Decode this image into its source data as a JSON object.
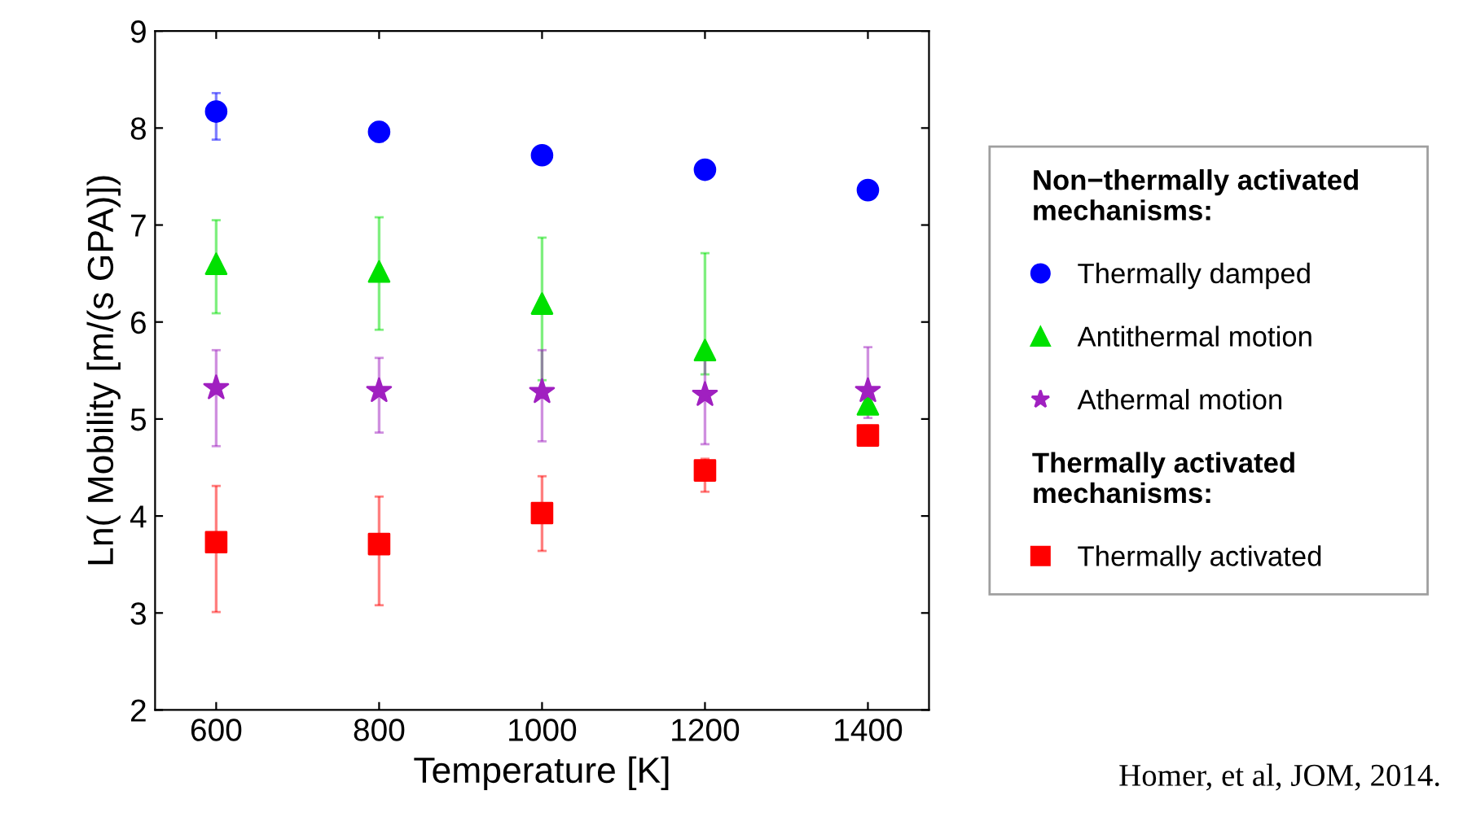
{
  "chart_data": {
    "type": "scatter",
    "xlabel": "Temperature [K]",
    "ylabel": "Ln( Mobility [m/(s GPA)])",
    "x": [
      600,
      800,
      1000,
      1200,
      1400
    ],
    "xlim": [
      525,
      1475
    ],
    "xticks": [
      600,
      800,
      1000,
      1200,
      1400
    ],
    "ylim": [
      2,
      9
    ],
    "yticks": [
      2,
      3,
      4,
      5,
      6,
      7,
      8,
      9
    ],
    "grid": false,
    "legend": "right",
    "series": [
      {
        "name": "Thermally damped",
        "color": "#0000ff",
        "marker": "circle",
        "values": [
          8.17,
          7.96,
          7.72,
          7.57,
          7.36
        ],
        "errors": [
          [
            7.88,
            8.36
          ],
          [
            7.86,
            8.06
          ],
          null,
          null,
          null
        ]
      },
      {
        "name": "Antithermal motion",
        "color": "#00e000",
        "marker": "triangle",
        "values": [
          6.6,
          6.52,
          6.19,
          5.71,
          5.15
        ],
        "errors": [
          [
            6.09,
            7.05
          ],
          [
            5.92,
            7.08
          ],
          [
            5.4,
            6.87
          ],
          [
            5.46,
            6.71
          ],
          null
        ]
      },
      {
        "name": "Athermal motion",
        "color": "#a020c0",
        "marker": "star",
        "values": [
          5.32,
          5.29,
          5.28,
          5.25,
          5.29
        ],
        "errors": [
          [
            4.72,
            5.71
          ],
          [
            4.86,
            5.63
          ],
          [
            4.77,
            5.71
          ],
          [
            4.74,
            5.68
          ],
          [
            5.01,
            5.74
          ]
        ]
      },
      {
        "name": "Thermally activated",
        "color": "#ff0000",
        "marker": "square",
        "values": [
          3.73,
          3.71,
          4.03,
          4.47,
          4.83
        ],
        "errors": [
          [
            3.01,
            4.31
          ],
          [
            3.08,
            4.2
          ],
          [
            3.64,
            4.41
          ],
          [
            4.25,
            4.59
          ],
          [
            4.73,
            4.93
          ]
        ]
      }
    ],
    "annotations": [
      "Non−thermally activated\nmechanisms:",
      "Thermally activated\nmechanisms:",
      "Homer, et al, JOM, 2014."
    ]
  }
}
